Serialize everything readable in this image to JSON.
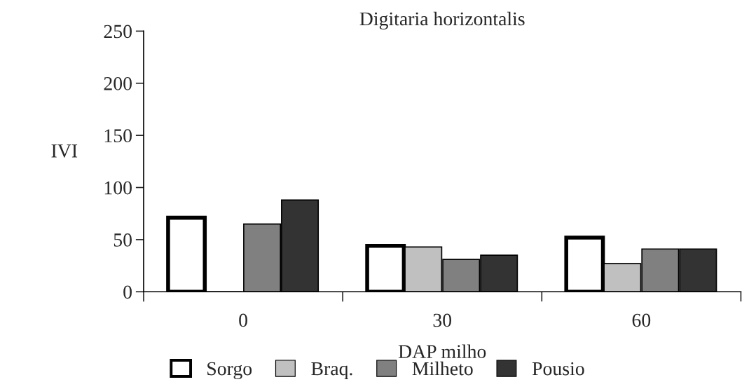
{
  "chart_data": {
    "type": "bar",
    "title": "Digitaria horizontalis",
    "xlabel": "DAP milho",
    "ylabel": "IVI",
    "categories": [
      "0",
      "30",
      "60"
    ],
    "series": [
      {
        "name": "Sorgo",
        "color": "#ffffff",
        "values": [
          71,
          44,
          52
        ]
      },
      {
        "name": "Braq.",
        "color": "#c0c0c0",
        "values": [
          0,
          43,
          27
        ]
      },
      {
        "name": "Milheto",
        "color": "#808080",
        "values": [
          65,
          31,
          41
        ]
      },
      {
        "name": "Pousio",
        "color": "#333333",
        "values": [
          88,
          35,
          41
        ]
      }
    ],
    "ylim": [
      0,
      250
    ],
    "yticks": [
      0,
      50,
      100,
      150,
      200,
      250
    ],
    "grid": false,
    "legend": "bottom"
  }
}
